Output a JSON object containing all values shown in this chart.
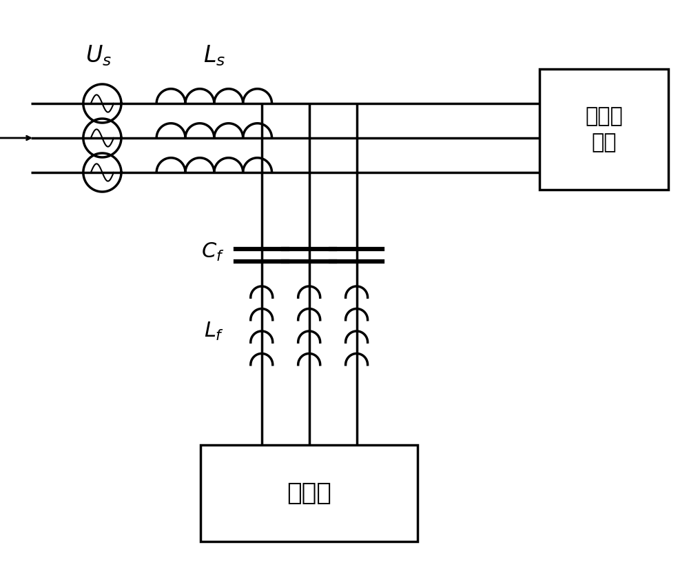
{
  "bg_color": "#ffffff",
  "line_color": "#000000",
  "lw": 2.5,
  "fig_width": 10.0,
  "fig_height": 8.35,
  "Us_label": "$U_s$",
  "Ls_label": "$L_s$",
  "Cf_label": "$C_f$",
  "Lf_label": "$L_f$",
  "load_label": "非线性\n负载",
  "converter_label": "变流器"
}
